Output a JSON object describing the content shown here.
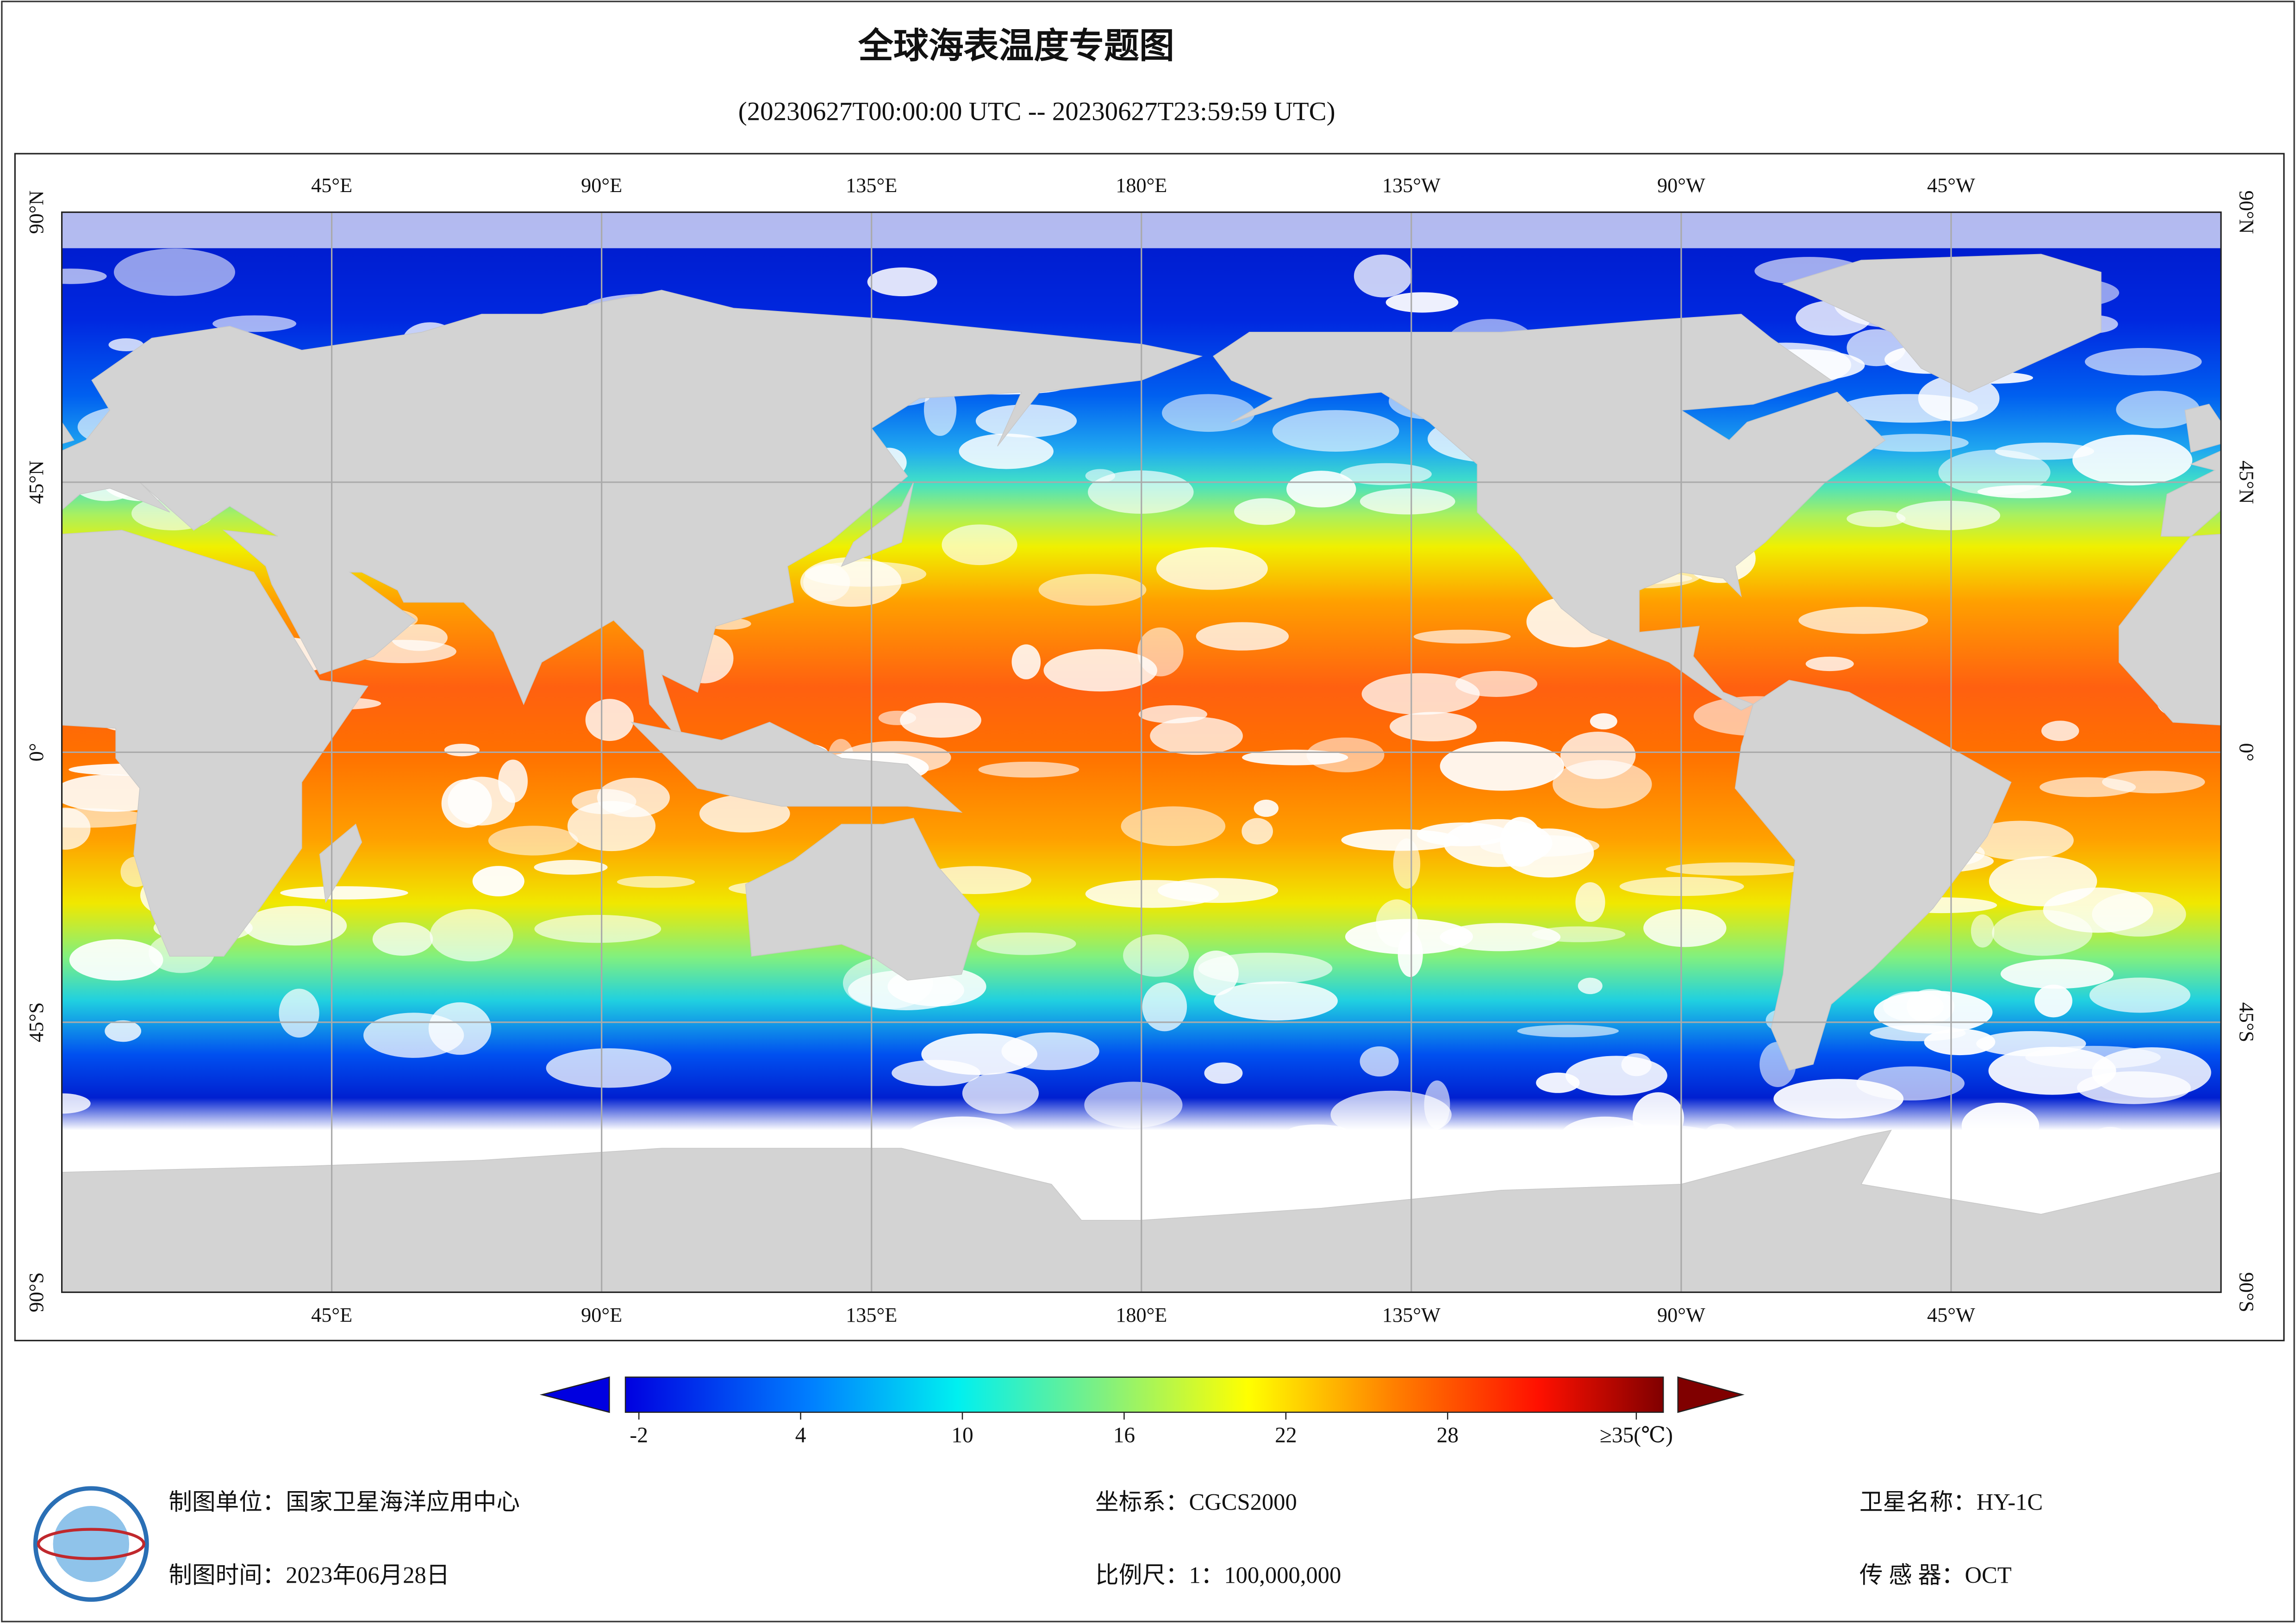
{
  "header": {
    "title": "全球海表温度专题图",
    "subtitle": "(20230627T00:00:00 UTC -- 20230627T23:59:59 UTC)"
  },
  "map": {
    "lonlim": [
      0,
      360
    ],
    "latlim": [
      -90,
      90
    ],
    "grid": true,
    "lonticks": [
      {
        "value": 45,
        "label": "45°E"
      },
      {
        "value": 90,
        "label": "90°E"
      },
      {
        "value": 135,
        "label": "135°E"
      },
      {
        "value": 180,
        "label": "180°E"
      },
      {
        "value": 225,
        "label": "135°W"
      },
      {
        "value": 270,
        "label": "90°W"
      },
      {
        "value": 315,
        "label": "45°W"
      }
    ],
    "latticks": [
      {
        "value": 90,
        "label": "90°N"
      },
      {
        "value": 45,
        "label": "45°N"
      },
      {
        "value": 0,
        "label": "0°"
      },
      {
        "value": -45,
        "label": "45°S"
      },
      {
        "value": -90,
        "label": "90°S"
      }
    ]
  },
  "colorbar": {
    "lim": [
      -2.5,
      36
    ],
    "ticks": [
      -2,
      4,
      10,
      16,
      22,
      28,
      {
        "value": 35,
        "label": "≥35(℃)"
      }
    ]
  },
  "footer": {
    "unit": "制图单位：国家卫星海洋应用中心",
    "date": "制图时间：2023年06月28日",
    "crs": "坐标系：CGCS2000",
    "scale": "比例尺：1：100,000,000",
    "satellite": "卫星名称：HY-1C",
    "sensor": "传 感 器：OCT"
  }
}
